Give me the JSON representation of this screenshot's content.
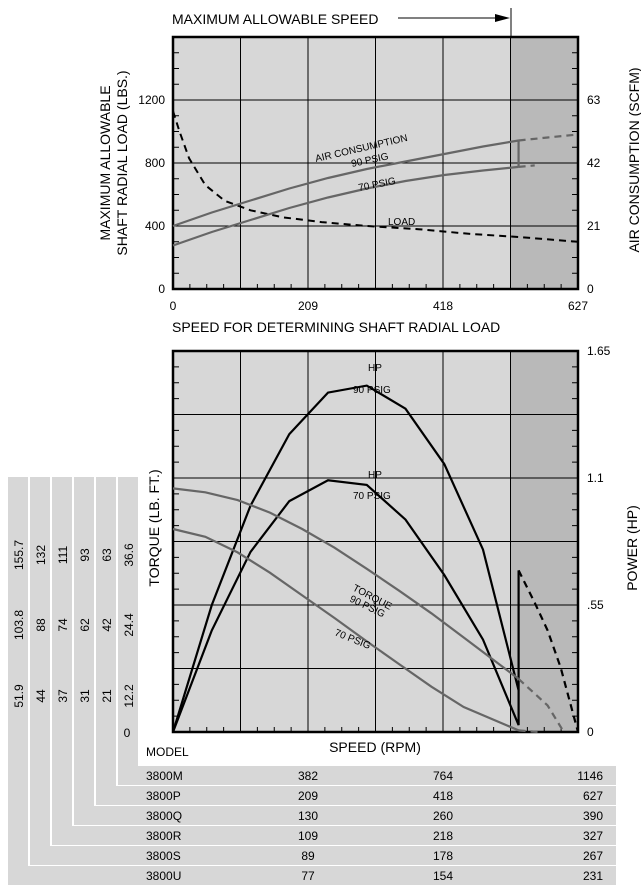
{
  "top_chart": {
    "title": "MAXIMUM ALLOWABLE SPEED",
    "left_axis_title_line1": "MAXIMUM ALLOWABLE",
    "left_axis_title_line2": "SHAFT RADIAL LOAD (LBS.)",
    "right_axis_title": "AIR CONSUMPTION (SCFM)",
    "x_axis_title": "SPEED FOR DETERMINING SHAFT RADIAL LOAD",
    "curve_labels": {
      "air": "AIR CONSUMPTION",
      "p90": "90 PSIG",
      "p70": "70 PSIG",
      "load": "LOAD"
    }
  },
  "bottom_chart": {
    "left_axis_title": "TORQUE (LB. FT.)",
    "right_axis_title": "POWER (HP)",
    "x_axis_title": "SPEED (RPM)",
    "curve_labels": {
      "hp90_a": "HP",
      "hp90_b": "90 PSIG",
      "hp70_a": "HP",
      "hp70_b": "70 PSIG",
      "torque": "TORQUE",
      "t90": "90 PSIG",
      "t70": "70 PSIG"
    },
    "torque_scales": [
      [
        "155.7",
        "103.8",
        "51.9"
      ],
      [
        "132",
        "88",
        "44"
      ],
      [
        "111",
        "74",
        "37"
      ],
      [
        "93",
        "62",
        "31"
      ],
      [
        "63",
        "42",
        "21"
      ],
      [
        "36.6",
        "24.4",
        "12.2"
      ]
    ],
    "torque_zero": "0"
  },
  "speed_table": {
    "header": "MODEL",
    "rows": [
      {
        "model": "3800M",
        "speeds": [
          "382",
          "764",
          "1146"
        ]
      },
      {
        "model": "3800P",
        "speeds": [
          "209",
          "418",
          "627"
        ]
      },
      {
        "model": "3800Q",
        "speeds": [
          "130",
          "260",
          "390"
        ]
      },
      {
        "model": "3800R",
        "speeds": [
          "109",
          "218",
          "327"
        ]
      },
      {
        "model": "3800S",
        "speeds": [
          "89",
          "178",
          "267"
        ]
      },
      {
        "model": "3800U",
        "speeds": [
          "77",
          "154",
          "231"
        ]
      }
    ]
  },
  "chart_data": [
    {
      "type": "line",
      "title": "MAXIMUM ALLOWABLE SPEED",
      "xlabel": "SPEED FOR DETERMINING SHAFT RADIAL LOAD",
      "ylabel": "MAXIMUM ALLOWABLE SHAFT RADIAL LOAD (LBS.)",
      "y2label": "AIR CONSUMPTION (SCFM)",
      "x_ticks": [
        "0",
        "209",
        "418",
        "627"
      ],
      "y_ticks": [
        "0",
        "400",
        "800",
        "1200"
      ],
      "y2_ticks": [
        "0",
        "21",
        "42",
        "63"
      ],
      "xlim": [
        0,
        627
      ],
      "ylim": [
        0,
        1600
      ],
      "y2lim": [
        0,
        84
      ],
      "max_allowable_speed": 535,
      "series": [
        {
          "axis": "y",
          "style": "dashed",
          "x": [
            0,
            10,
            25,
            50,
            80,
            120,
            170,
            230,
            300,
            380,
            460,
            535,
            627
          ],
          "y": [
            1130,
            1000,
            830,
            660,
            560,
            500,
            455,
            425,
            400,
            380,
            350,
            330,
            300
          ]
        },
        {
          "axis": "y2",
          "style": "solid",
          "x": [
            0,
            60,
            120,
            180,
            240,
            300,
            360,
            420,
            480,
            535
          ],
          "y": [
            21,
            25.5,
            29.5,
            33.5,
            37,
            40,
            42.5,
            45,
            47.5,
            49.5
          ]
        },
        {
          "axis": "y2",
          "style": "dashed",
          "x": [
            535,
            580,
            627
          ],
          "y": [
            49.5,
            50.5,
            51.5
          ]
        },
        {
          "axis": "y2",
          "style": "solid",
          "x": [
            0,
            60,
            120,
            180,
            240,
            300,
            360,
            420,
            480,
            535
          ],
          "y": [
            14.5,
            19,
            23,
            27,
            30.5,
            33.5,
            36,
            38,
            39.5,
            40.7
          ]
        },
        {
          "axis": "y2",
          "style": "dashed",
          "x": [
            535,
            560
          ],
          "y": [
            40.7,
            41.2
          ]
        }
      ]
    },
    {
      "type": "line",
      "xlabel": "SPEED (RPM)",
      "ylabel": "TORQUE (LB. FT.)",
      "y2label": "POWER (HP)",
      "y2_ticks": [
        "0",
        ".55",
        "1.1",
        "1.65"
      ],
      "xlim": [
        0,
        627
      ],
      "y2lim": [
        0,
        1.65
      ],
      "torque_ylim": [
        0,
        48.8
      ],
      "series": [
        {
          "axis": "y2",
          "style": "solid",
          "x": [
            0,
            60,
            120,
            180,
            240,
            300,
            360,
            420,
            480,
            535
          ],
          "y": [
            0,
            0.55,
            0.98,
            1.29,
            1.47,
            1.5,
            1.4,
            1.16,
            0.79,
            0.18
          ]
        },
        {
          "axis": "y2",
          "style": "dashed",
          "x": [
            535,
            560,
            580,
            600,
            627
          ],
          "y": [
            0.7,
            0.56,
            0.44,
            0.28,
            0
          ]
        },
        {
          "axis": "y2",
          "style": "solid",
          "x": [
            0,
            60,
            120,
            180,
            240,
            300,
            360,
            420,
            480,
            535,
            535
          ],
          "y": [
            0,
            0.44,
            0.78,
            1.0,
            1.09,
            1.07,
            0.92,
            0.68,
            0.4,
            0.03,
            0.7
          ]
        },
        {
          "axis": "y",
          "style": "solid",
          "x": [
            0,
            50,
            100,
            150,
            200,
            250,
            300,
            350,
            400,
            450,
            535
          ],
          "y": [
            31.2,
            30.7,
            29.7,
            28.1,
            26.0,
            23.6,
            20.9,
            18.1,
            15.2,
            12.1,
            6.8
          ]
        },
        {
          "axis": "y",
          "style": "dashed",
          "x": [
            535,
            580,
            605
          ],
          "y": [
            6.8,
            3.4,
            0
          ]
        },
        {
          "axis": "y",
          "style": "solid",
          "x": [
            0,
            50,
            100,
            150,
            200,
            250,
            300,
            350,
            400,
            450,
            535
          ],
          "y": [
            26.0,
            25.0,
            23.0,
            20.4,
            17.5,
            14.6,
            11.6,
            8.7,
            5.8,
            3.2,
            0.2
          ]
        },
        {
          "axis": "y",
          "style": "dashed",
          "x": [
            535,
            565
          ],
          "y": [
            0.2,
            0
          ]
        }
      ]
    }
  ]
}
